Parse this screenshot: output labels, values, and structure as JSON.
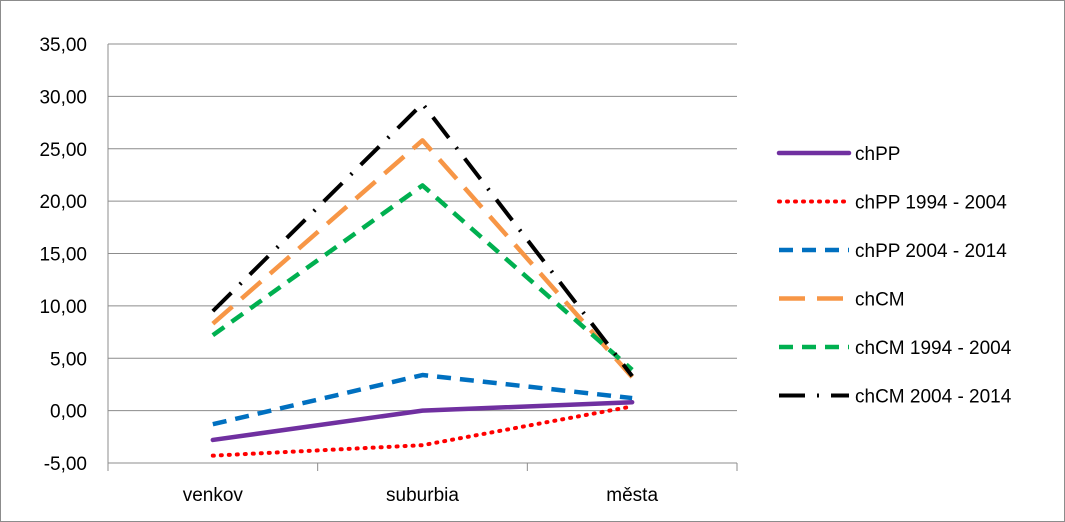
{
  "chart_data": {
    "type": "line",
    "title": "",
    "xlabel": "",
    "ylabel": "",
    "categories": [
      "venkov",
      "suburbia",
      "města"
    ],
    "ylim": [
      -5,
      35
    ],
    "yticks": [
      -5,
      0,
      5,
      10,
      15,
      20,
      25,
      30,
      35
    ],
    "ytick_labels": [
      "-5,00",
      "0,00",
      "5,00",
      "10,00",
      "15,00",
      "20,00",
      "25,00",
      "30,00",
      "35,00"
    ],
    "grid": true,
    "legend_position": "right",
    "series": [
      {
        "name": "chPP",
        "values": [
          -2.8,
          0.0,
          0.8
        ],
        "color": "#7030a0",
        "style": "solid"
      },
      {
        "name": "chPP 1994 - 2004",
        "values": [
          -4.3,
          -3.3,
          0.4
        ],
        "color": "#ff0000",
        "style": "dot"
      },
      {
        "name": "chPP 2004 - 2014",
        "values": [
          -1.3,
          3.4,
          1.2
        ],
        "color": "#0070c0",
        "style": "dash"
      },
      {
        "name": "chCM",
        "values": [
          8.3,
          25.8,
          3.2
        ],
        "color": "#f79646",
        "style": "longdash"
      },
      {
        "name": "chCM 1994 - 2004",
        "values": [
          7.2,
          21.5,
          3.9
        ],
        "color": "#00b050",
        "style": "dash"
      },
      {
        "name": "chCM 2004 - 2014",
        "values": [
          9.5,
          29.3,
          3.3
        ],
        "color": "#000000",
        "style": "dashdot"
      }
    ]
  }
}
